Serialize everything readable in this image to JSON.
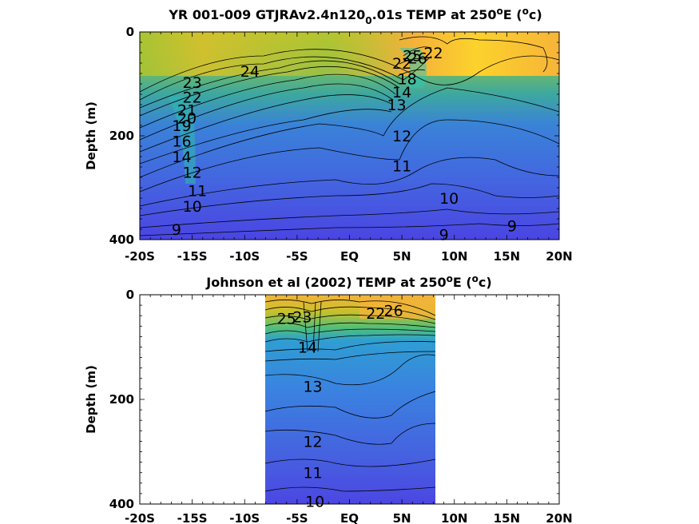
{
  "chart_data": [
    {
      "type": "heatmap",
      "title_main": "YR 001-009 GTJRAv2.4n120",
      "title_sub": "0",
      "title_rest": ".01s TEMP at 250",
      "title_deg": "o",
      "title_end1": "E (",
      "title_unit": "c)",
      "ylabel": "Depth (m)",
      "xlim": [
        -20,
        20
      ],
      "ylim": [
        0,
        400
      ],
      "x_ticks": [
        -20,
        -15,
        -10,
        -5,
        0,
        5,
        10,
        15,
        20
      ],
      "x_tick_labels": [
        "-20S",
        "-15S",
        "-10S",
        "-5S",
        "EQ",
        "5N",
        "10N",
        "15N",
        "20N"
      ],
      "y_ticks": [
        0,
        200,
        400
      ],
      "y_tick_labels": [
        "0",
        "200",
        "400"
      ],
      "data_extent_x": [
        -20,
        20
      ],
      "contour_labels": [
        {
          "text": "24",
          "x": -9.5,
          "y": 75
        },
        {
          "text": "23",
          "x": -15,
          "y": 97
        },
        {
          "text": "22",
          "x": -15,
          "y": 125
        },
        {
          "text": "21",
          "x": -15.5,
          "y": 150
        },
        {
          "text": "20",
          "x": -15.5,
          "y": 165
        },
        {
          "text": "19",
          "x": -16,
          "y": 180
        },
        {
          "text": "16",
          "x": -16,
          "y": 210
        },
        {
          "text": "14",
          "x": -16,
          "y": 240
        },
        {
          "text": "12",
          "x": -15,
          "y": 270
        },
        {
          "text": "11",
          "x": -14.5,
          "y": 305
        },
        {
          "text": "10",
          "x": -15,
          "y": 335
        },
        {
          "text": "9",
          "x": -16.5,
          "y": 380
        },
        {
          "text": "13",
          "x": 4.5,
          "y": 140
        },
        {
          "text": "14",
          "x": 5,
          "y": 115
        },
        {
          "text": "18",
          "x": 5.5,
          "y": 90
        },
        {
          "text": "22",
          "x": 5,
          "y": 60
        },
        {
          "text": "25",
          "x": 6,
          "y": 45
        },
        {
          "text": "26",
          "x": 6.5,
          "y": 50
        },
        {
          "text": "22",
          "x": 8,
          "y": 40
        },
        {
          "text": "12",
          "x": 5,
          "y": 200
        },
        {
          "text": "11",
          "x": 5,
          "y": 258
        },
        {
          "text": "10",
          "x": 9.5,
          "y": 320
        },
        {
          "text": "9",
          "x": 9,
          "y": 390
        },
        {
          "text": "9",
          "x": 15.5,
          "y": 373
        }
      ]
    },
    {
      "type": "heatmap",
      "title_main": "Johnson et al (2002) TEMP at 250",
      "title_deg": "o",
      "title_end1": "E (",
      "title_unit": "c)",
      "ylabel": "Depth (m)",
      "xlim": [
        -20,
        20
      ],
      "ylim": [
        0,
        400
      ],
      "x_ticks": [
        -20,
        -15,
        -10,
        -5,
        0,
        5,
        10,
        15,
        20
      ],
      "x_tick_labels": [
        "-20S",
        "-15S",
        "-10S",
        "-5S",
        "EQ",
        "5N",
        "10N",
        "15N",
        "20N"
      ],
      "y_ticks": [
        0,
        200,
        400
      ],
      "y_tick_labels": [
        "0",
        "200",
        "400"
      ],
      "data_extent_x": [
        -8,
        8
      ],
      "contour_labels": [
        {
          "text": "25",
          "x": -6,
          "y": 45
        },
        {
          "text": "23",
          "x": -4.5,
          "y": 42
        },
        {
          "text": "14",
          "x": -4,
          "y": 100
        },
        {
          "text": "13",
          "x": -3.5,
          "y": 175
        },
        {
          "text": "12",
          "x": -3.5,
          "y": 280
        },
        {
          "text": "11",
          "x": -3.5,
          "y": 340
        },
        {
          "text": "10",
          "x": -3.3,
          "y": 395
        },
        {
          "text": "22",
          "x": 2.5,
          "y": 35
        },
        {
          "text": "26",
          "x": 4.2,
          "y": 30
        }
      ]
    }
  ]
}
